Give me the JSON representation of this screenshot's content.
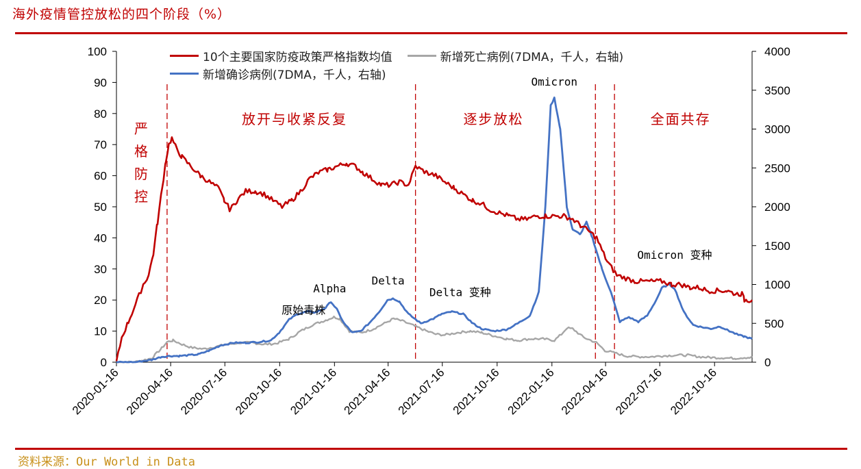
{
  "page": {
    "title": "海外疫情管控放松的四个阶段（%）",
    "source": "资料来源：Our World in Data"
  },
  "chart_data": {
    "type": "line",
    "xlim": [
      "2020-01-16",
      "2022-12-18"
    ],
    "x_ticks": [
      "2020-01-16",
      "2020-04-16",
      "2020-07-16",
      "2020-10-16",
      "2021-01-16",
      "2021-04-16",
      "2021-07-16",
      "2021-10-16",
      "2022-01-16",
      "2022-04-16",
      "2022-07-16",
      "2022-10-16"
    ],
    "y_left": {
      "lim": [
        0,
        100
      ],
      "ticks": [
        0,
        10,
        20,
        30,
        40,
        50,
        60,
        70,
        80,
        90,
        100
      ]
    },
    "y_right": {
      "lim": [
        0,
        4000
      ],
      "ticks": [
        0,
        500,
        1000,
        1500,
        2000,
        2500,
        3000,
        3500,
        4000
      ]
    },
    "grid": false,
    "legend_position": "top",
    "series": [
      {
        "name": "10个主要国家防疫政策严格指数均值",
        "axis": "left",
        "color": "#c00000",
        "x": [
          "2020-01-16",
          "2020-01-25",
          "2020-02-05",
          "2020-02-20",
          "2020-03-01",
          "2020-03-10",
          "2020-03-18",
          "2020-03-25",
          "2020-04-01",
          "2020-04-08",
          "2020-04-13",
          "2020-04-18",
          "2020-04-25",
          "2020-05-05",
          "2020-05-20",
          "2020-06-05",
          "2020-06-20",
          "2020-07-05",
          "2020-07-15",
          "2020-07-25",
          "2020-08-05",
          "2020-08-20",
          "2020-09-05",
          "2020-09-20",
          "2020-10-05",
          "2020-10-20",
          "2020-11-05",
          "2020-11-20",
          "2020-12-05",
          "2020-12-20",
          "2021-01-05",
          "2021-01-20",
          "2021-02-05",
          "2021-02-20",
          "2021-03-05",
          "2021-03-20",
          "2021-04-05",
          "2021-04-20",
          "2021-05-05",
          "2021-05-20",
          "2021-06-01",
          "2021-06-10",
          "2021-06-20",
          "2021-07-05",
          "2021-07-20",
          "2021-08-05",
          "2021-08-20",
          "2021-09-05",
          "2021-09-20",
          "2021-10-05",
          "2021-10-20",
          "2021-11-05",
          "2021-11-20",
          "2021-12-05",
          "2021-12-20",
          "2022-01-05",
          "2022-01-20",
          "2022-02-05",
          "2022-02-20",
          "2022-03-05",
          "2022-03-20",
          "2022-04-01",
          "2022-04-10",
          "2022-04-20",
          "2022-05-05",
          "2022-05-20",
          "2022-06-05",
          "2022-06-20",
          "2022-07-05",
          "2022-07-20",
          "2022-08-05",
          "2022-08-20",
          "2022-09-05",
          "2022-09-20",
          "2022-10-05",
          "2022-10-20",
          "2022-11-05",
          "2022-11-20",
          "2022-12-01",
          "2022-12-05",
          "2022-12-10",
          "2022-12-18"
        ],
        "values": [
          0,
          8,
          13,
          20,
          25,
          28,
          35,
          45,
          55,
          65,
          70,
          72,
          69,
          66,
          63,
          60,
          58,
          56,
          52,
          49,
          52,
          55,
          55,
          54,
          52,
          50,
          52,
          55,
          59,
          61,
          62,
          63,
          64,
          63,
          61,
          59,
          57,
          57,
          58,
          57,
          63,
          62,
          61,
          60,
          58,
          56,
          54,
          52,
          51,
          49,
          48,
          47,
          46,
          46,
          47,
          47,
          47,
          47,
          46,
          44,
          42,
          40,
          36,
          32,
          28,
          27,
          26,
          26,
          26,
          26,
          25,
          25,
          24,
          24,
          23,
          23,
          23,
          22,
          22,
          20,
          20,
          20
        ]
      },
      {
        "name": "新增死亡病例(7DMA，千人，右轴)",
        "axis": "right",
        "color": "#a6a6a6",
        "x": [
          "2020-01-16",
          "2020-02-15",
          "2020-03-15",
          "2020-04-01",
          "2020-04-10",
          "2020-04-20",
          "2020-05-05",
          "2020-05-20",
          "2020-06-10",
          "2020-07-01",
          "2020-07-20",
          "2020-08-10",
          "2020-09-01",
          "2020-09-20",
          "2020-10-10",
          "2020-11-01",
          "2020-11-20",
          "2020-12-10",
          "2021-01-01",
          "2021-01-15",
          "2021-01-25",
          "2021-02-10",
          "2021-03-01",
          "2021-03-20",
          "2021-04-10",
          "2021-04-25",
          "2021-05-10",
          "2021-06-01",
          "2021-06-20",
          "2021-07-05",
          "2021-07-20",
          "2021-08-10",
          "2021-09-01",
          "2021-09-20",
          "2021-10-10",
          "2021-11-01",
          "2021-11-20",
          "2021-12-10",
          "2022-01-01",
          "2022-01-20",
          "2022-02-01",
          "2022-02-10",
          "2022-02-20",
          "2022-03-10",
          "2022-04-01",
          "2022-04-15",
          "2022-05-01",
          "2022-05-20",
          "2022-06-10",
          "2022-07-01",
          "2022-07-20",
          "2022-08-10",
          "2022-09-01",
          "2022-09-20",
          "2022-10-10",
          "2022-11-01",
          "2022-11-20",
          "2022-12-05",
          "2022-12-18"
        ],
        "values": [
          0,
          0,
          50,
          180,
          260,
          280,
          230,
          190,
          170,
          200,
          230,
          250,
          250,
          230,
          240,
          300,
          400,
          480,
          540,
          580,
          560,
          400,
          380,
          420,
          500,
          560,
          530,
          460,
          400,
          360,
          350,
          380,
          400,
          380,
          340,
          300,
          280,
          300,
          300,
          280,
          360,
          440,
          430,
          320,
          250,
          150,
          120,
          80,
          70,
          70,
          80,
          90,
          90,
          70,
          60,
          55,
          50,
          60,
          60
        ]
      },
      {
        "name": "新增确诊病例(7DMA，千人，右轴)",
        "axis": "right",
        "color": "#4472c4",
        "x": [
          "2020-01-16",
          "2020-02-15",
          "2020-03-15",
          "2020-04-01",
          "2020-04-15",
          "2020-05-01",
          "2020-06-01",
          "2020-06-20",
          "2020-07-10",
          "2020-08-01",
          "2020-08-20",
          "2020-09-10",
          "2020-10-01",
          "2020-10-15",
          "2020-11-01",
          "2020-11-15",
          "2020-12-01",
          "2020-12-15",
          "2021-01-01",
          "2021-01-10",
          "2021-01-20",
          "2021-02-01",
          "2021-02-15",
          "2021-03-01",
          "2021-03-15",
          "2021-04-01",
          "2021-04-15",
          "2021-04-25",
          "2021-05-05",
          "2021-05-20",
          "2021-06-10",
          "2021-07-01",
          "2021-07-15",
          "2021-08-01",
          "2021-08-20",
          "2021-09-05",
          "2021-09-20",
          "2021-10-10",
          "2021-11-01",
          "2021-11-20",
          "2021-12-10",
          "2021-12-25",
          "2022-01-05",
          "2022-01-14",
          "2022-01-20",
          "2022-01-30",
          "2022-02-10",
          "2022-02-20",
          "2022-03-05",
          "2022-03-15",
          "2022-03-25",
          "2022-04-10",
          "2022-04-25",
          "2022-05-10",
          "2022-05-25",
          "2022-06-10",
          "2022-06-25",
          "2022-07-10",
          "2022-07-20",
          "2022-08-01",
          "2022-08-10",
          "2022-08-25",
          "2022-09-10",
          "2022-09-25",
          "2022-10-10",
          "2022-10-25",
          "2022-11-10",
          "2022-11-25",
          "2022-12-05",
          "2022-12-18"
        ],
        "values": [
          0,
          0,
          30,
          70,
          80,
          80,
          100,
          150,
          220,
          250,
          250,
          260,
          280,
          380,
          550,
          620,
          650,
          640,
          700,
          780,
          680,
          500,
          380,
          400,
          500,
          650,
          800,
          820,
          780,
          620,
          500,
          560,
          620,
          650,
          620,
          500,
          430,
          400,
          420,
          500,
          600,
          900,
          2000,
          3300,
          3400,
          3000,
          2000,
          1700,
          1650,
          1800,
          1600,
          1200,
          900,
          520,
          580,
          520,
          600,
          800,
          960,
          1000,
          950,
          650,
          480,
          450,
          430,
          460,
          400,
          350,
          330,
          300
        ]
      }
    ],
    "annotations": {
      "stages": [
        "严格防控",
        "放开与收紧反复",
        "逐步放松",
        "全面共存"
      ],
      "stage_dividers": [
        "2020-04-10",
        "2021-06-01",
        "2022-03-30",
        "2022-05-01"
      ],
      "variants": [
        {
          "text": "原始毒株",
          "x": "2020-11-25",
          "y": 620
        },
        {
          "text": "Alpha",
          "x": "2021-01-08",
          "y": 900
        },
        {
          "text": "Delta",
          "x": "2021-04-16",
          "y": 1000
        },
        {
          "text": "Delta 变种",
          "x": "2021-08-15",
          "y": 850
        },
        {
          "text": "Omicron",
          "x": "2022-01-20",
          "y": 3560
        },
        {
          "text": "Omicron 变种",
          "x": "2022-08-10",
          "y": 1330
        }
      ]
    }
  }
}
